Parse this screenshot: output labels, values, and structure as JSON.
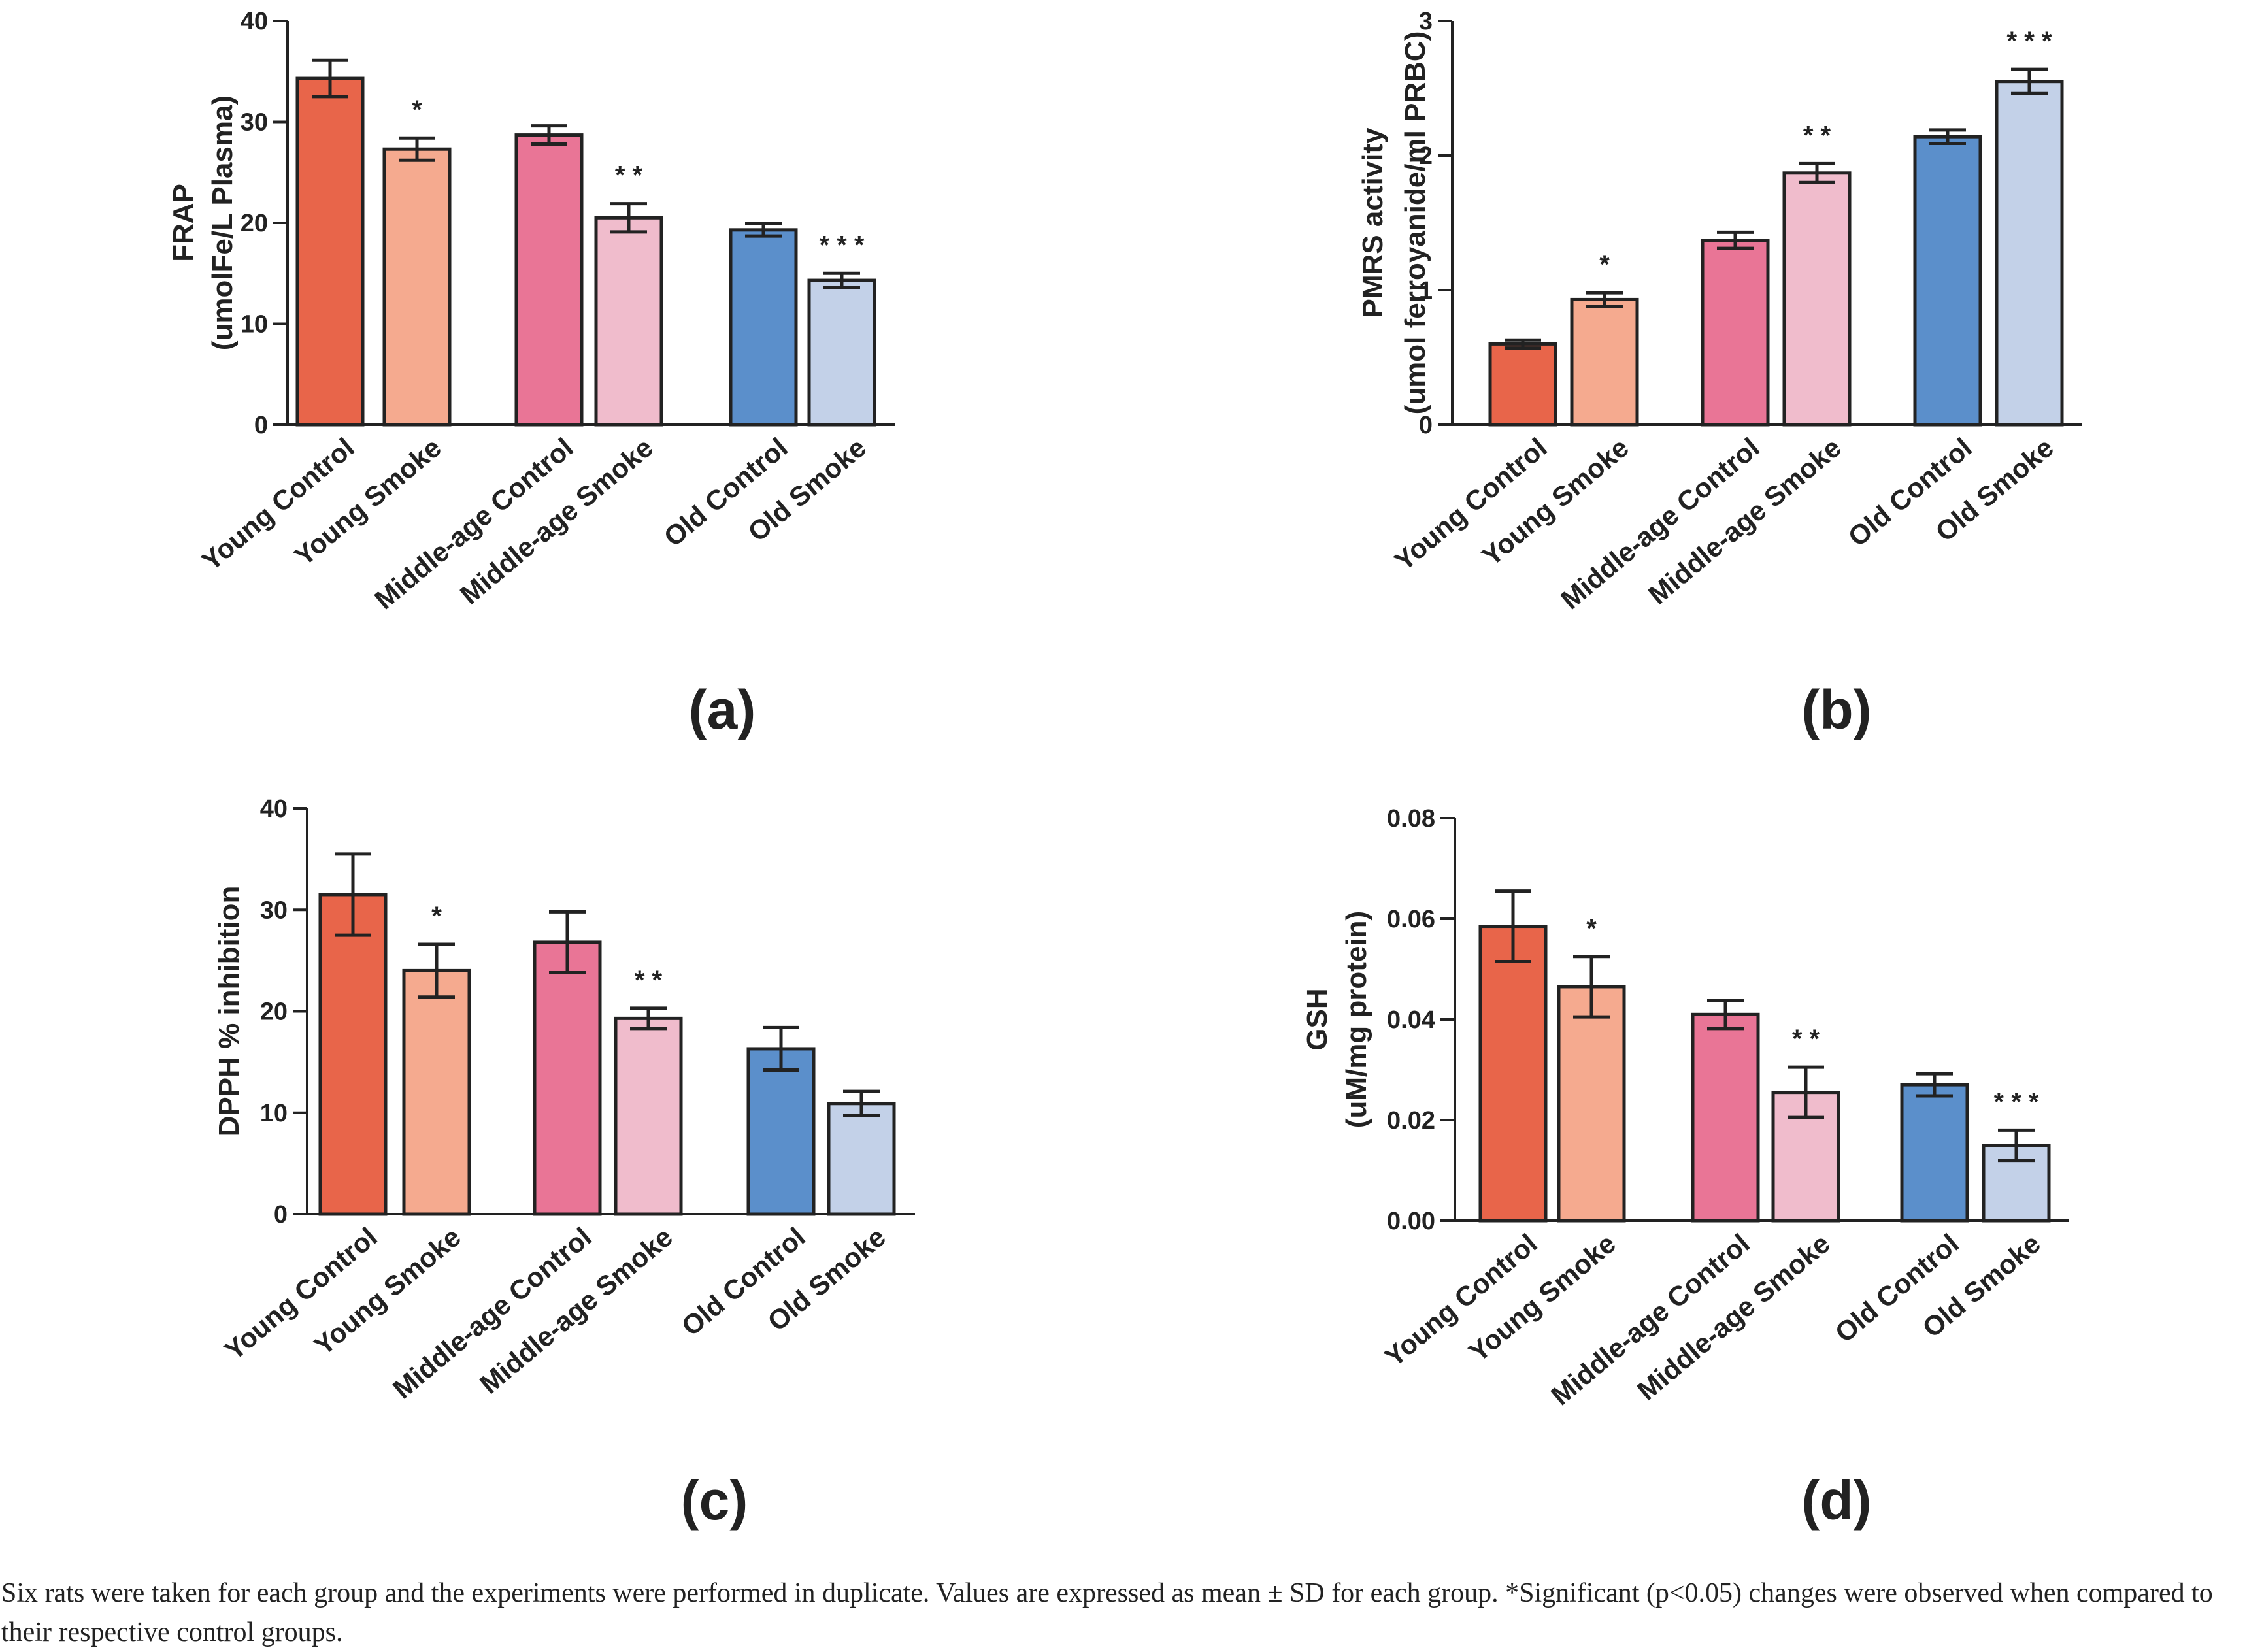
{
  "colors": {
    "young_control": "#e8654a",
    "young_smoke": "#f5aa8f",
    "middle_control": "#e97596",
    "middle_smoke": "#f0bccc",
    "old_control": "#5b8fcb",
    "old_smoke": "#c3d1e8"
  },
  "caption": "Six rats were taken for each group and the experiments were performed in duplicate. Values are expressed as mean ± SD for each group. *Significant (p<0.05) changes were observed when compared to their respective control groups.",
  "chart_data": [
    {
      "panel": "(a)",
      "type": "bar",
      "title": "",
      "ylabel_lines": [
        "FRAP",
        "(umolFe/L Plasma)"
      ],
      "xlabel": "",
      "ylim": [
        0,
        40
      ],
      "yticks": [
        "0",
        "10",
        "20",
        "30",
        "40"
      ],
      "ytick_values": [
        0,
        10,
        20,
        30,
        40
      ],
      "categories": [
        "Young Control",
        "Young Smoke",
        "Middle-age Control",
        "Middle-age Smoke",
        "Old Control",
        "Old Smoke"
      ],
      "values": [
        34.3,
        27.3,
        28.7,
        20.5,
        19.3,
        14.3
      ],
      "errors": [
        1.8,
        1.1,
        0.9,
        1.4,
        0.6,
        0.7
      ],
      "significance": [
        "",
        "*",
        "",
        "* *",
        "",
        "* * *"
      ],
      "grid": false
    },
    {
      "panel": "(b)",
      "type": "bar",
      "title": "",
      "ylabel_lines": [
        "PMRS activity",
        "(umol ferroyanide/ml PRBC)"
      ],
      "xlabel": "",
      "ylim": [
        0,
        3
      ],
      "yticks": [
        "0",
        "1",
        "2",
        "3"
      ],
      "ytick_values": [
        0,
        1,
        2,
        3
      ],
      "categories": [
        "Young Control",
        "Young Smoke",
        "Middle-age Control",
        "Middle-age Smoke",
        "Old Control",
        "Old Smoke"
      ],
      "values": [
        0.6,
        0.93,
        1.37,
        1.87,
        2.14,
        2.55
      ],
      "errors": [
        0.03,
        0.05,
        0.06,
        0.07,
        0.05,
        0.09
      ],
      "significance": [
        "",
        "*",
        "",
        "* *",
        "",
        "* * *"
      ],
      "grid": false
    },
    {
      "panel": "(c)",
      "type": "bar",
      "title": "",
      "ylabel_lines": [
        "DPPH % inhibition"
      ],
      "xlabel": "",
      "ylim": [
        0,
        40
      ],
      "yticks": [
        "0",
        "10",
        "20",
        "30",
        "40"
      ],
      "ytick_values": [
        0,
        10,
        20,
        30,
        40
      ],
      "categories": [
        "Young Control",
        "Young Smoke",
        "Middle-age Control",
        "Middle-age Smoke",
        "Old Control",
        "Old Smoke"
      ],
      "values": [
        31.5,
        24.0,
        26.8,
        19.3,
        16.3,
        10.9
      ],
      "errors": [
        4.0,
        2.6,
        3.0,
        1.0,
        2.1,
        1.2
      ],
      "significance": [
        "",
        "*",
        "",
        "* *",
        "",
        ""
      ],
      "grid": false
    },
    {
      "panel": "(d)",
      "type": "bar",
      "title": "",
      "ylabel_lines": [
        "GSH",
        "(uM/mg protein)"
      ],
      "xlabel": "",
      "ylim": [
        0,
        0.08
      ],
      "yticks": [
        "0.00",
        "0.02",
        "0.04",
        "0.06",
        "0.08"
      ],
      "ytick_values": [
        0,
        0.02,
        0.04,
        0.06,
        0.08
      ],
      "categories": [
        "Young Control",
        "Young Smoke",
        "Middle-age Control",
        "Middle-age Smoke",
        "Old Control",
        "Old Smoke"
      ],
      "values": [
        0.0585,
        0.0465,
        0.041,
        0.0255,
        0.027,
        0.015
      ],
      "errors": [
        0.007,
        0.006,
        0.0028,
        0.005,
        0.0022,
        0.003
      ],
      "significance": [
        "",
        "*",
        "",
        "* *",
        "",
        "* * *"
      ],
      "grid": false
    }
  ]
}
